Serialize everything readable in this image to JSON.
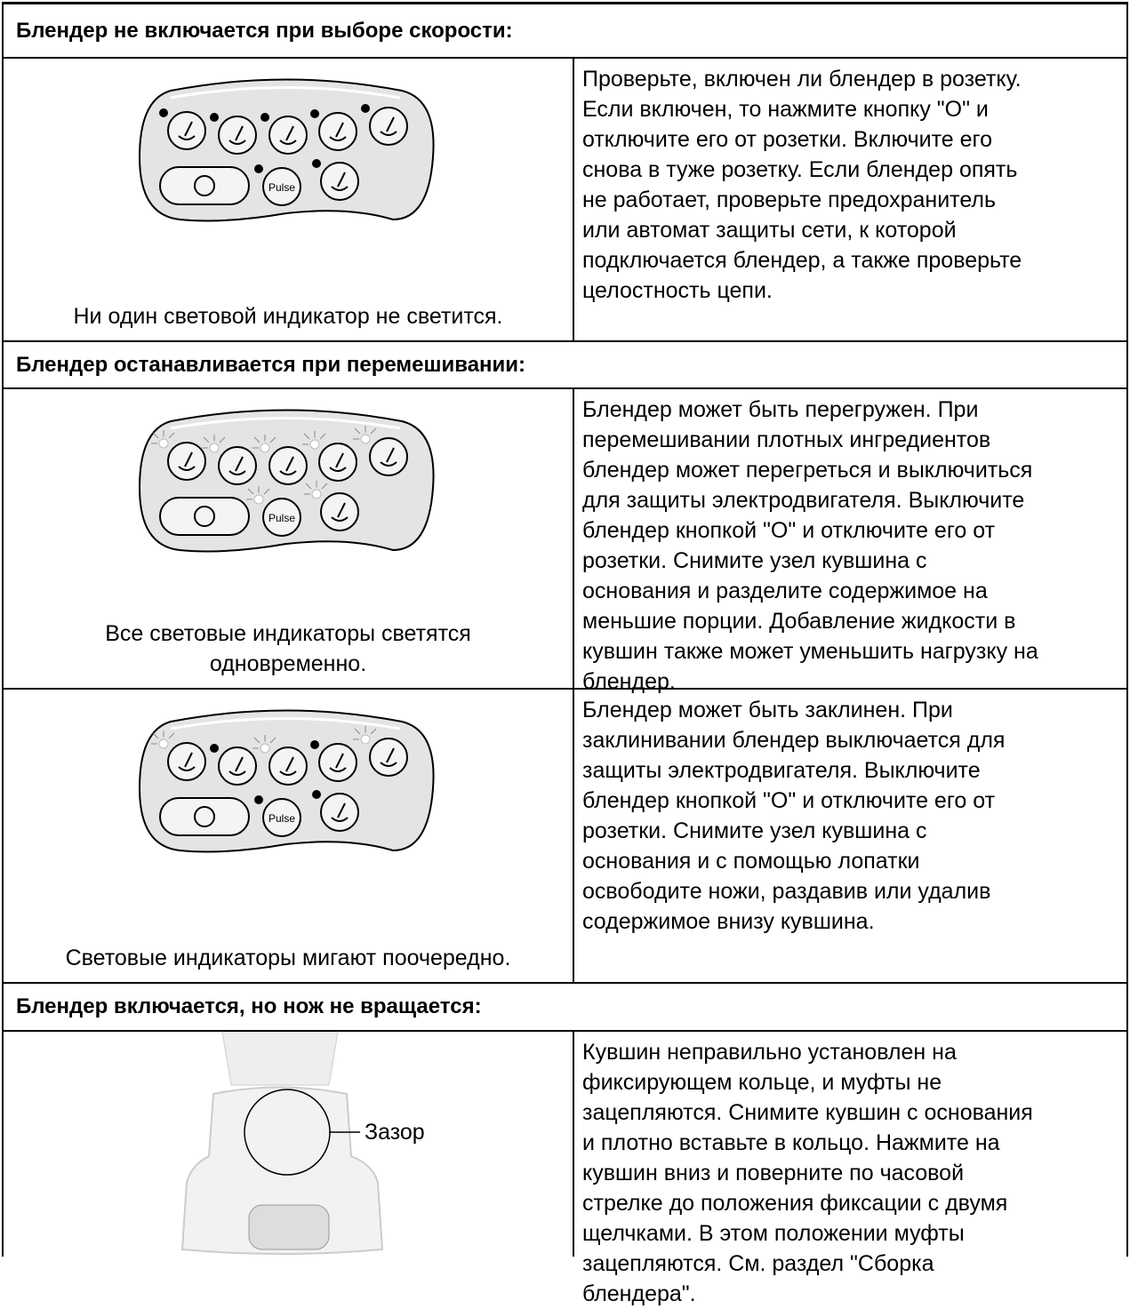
{
  "sections": [
    {
      "heading": "Блендер не включается при выборе скорости:",
      "rows": [
        {
          "caption": [
            "Ни один световой индикатор не светится."
          ],
          "text": [
            "Проверьте, включен ли блендер в розетку.",
            "Если включен, то нажмите кнопку \"O\" и",
            "отключите его от розетки. Включите его",
            "снова в туже розетку. Если блендер опять",
            "не работает, проверьте предохранитель",
            "или автомат защиты сети, к которой",
            "подключается блендер, а также проверьте",
            "целостность цепи."
          ]
        }
      ]
    },
    {
      "heading": "Блендер останавливается при перемешивании:",
      "rows": [
        {
          "caption": [
            "Все световые индикаторы светятся",
            "одновременно."
          ],
          "text": [
            "Блендер может быть перегружен. При",
            "перемешивании плотных ингредиентов",
            "блендер может перегреться и выключиться",
            "для защиты электродвигателя. Выключите",
            "блендер кнопкой \"O\" и отключите его от",
            "розетки. Снимите узел кувшина с",
            "основания и разделите содержимое на",
            "меньшие порции. Добавление жидкости в",
            "кувшин также может уменьшить нагрузку на",
            "блендер."
          ]
        },
        {
          "caption": [
            "Световые индикаторы мигают поочередно."
          ],
          "text": [
            "Блендер может быть заклинен. При",
            "заклинивании блендер выключается для",
            "защиты электродвигателя. Выключите",
            "блендер кнопкой \"O\" и отключите его от",
            "розетки. Снимите узел кувшина с",
            "основания и с помощью лопатки",
            "освободите ножи, раздавив или удалив",
            "содержимое внизу кувшина."
          ]
        }
      ]
    },
    {
      "heading": "Блендер включается, но нож не вращается:",
      "rows": [
        {
          "text": [
            "Кувшин неправильно установлен на",
            "фиксирующем кольце, и муфты не",
            "зацепляются. Снимите кувшин с основания",
            "и плотно вставьте в кольцо. Нажмите на",
            "кувшин вниз и поверните по часовой",
            "стрелке до положения фиксации с двумя",
            "щелчками. В этом положении муфты",
            "зацепляются. См. раздел \"Сборка",
            "блендера\"."
          ]
        }
      ]
    }
  ],
  "panel_button_label": "Pulse",
  "gap_label": "Зазор"
}
